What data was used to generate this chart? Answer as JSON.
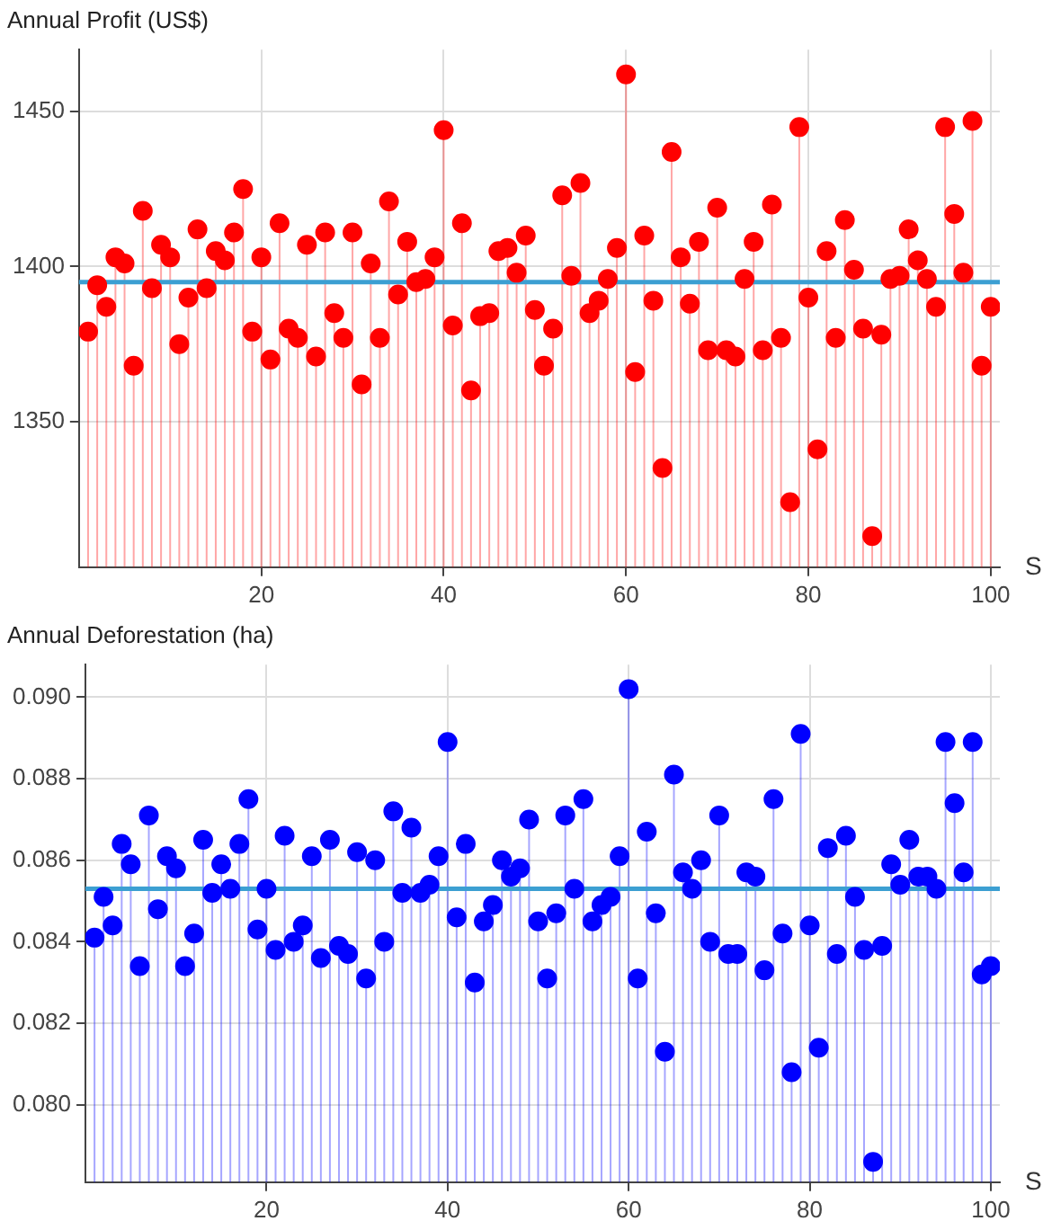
{
  "chart_data": [
    {
      "type": "lollipop",
      "ylabel": "Annual Profit (US$)",
      "xlabel": "S",
      "x": [
        1,
        2,
        3,
        4,
        5,
        6,
        7,
        8,
        9,
        10,
        11,
        12,
        13,
        14,
        15,
        16,
        17,
        18,
        19,
        20,
        21,
        22,
        23,
        24,
        25,
        26,
        27,
        28,
        29,
        30,
        31,
        32,
        33,
        34,
        35,
        36,
        37,
        38,
        39,
        40,
        41,
        42,
        43,
        44,
        45,
        46,
        47,
        48,
        49,
        50,
        51,
        52,
        53,
        54,
        55,
        56,
        57,
        58,
        59,
        60,
        61,
        62,
        63,
        64,
        65,
        66,
        67,
        68,
        69,
        70,
        71,
        72,
        73,
        74,
        75,
        76,
        77,
        78,
        79,
        80,
        81,
        82,
        83,
        84,
        85,
        86,
        87,
        88,
        89,
        90,
        91,
        92,
        93,
        94,
        95,
        96,
        97,
        98,
        99,
        100
      ],
      "values": [
        1379,
        1394,
        1387,
        1403,
        1401,
        1368,
        1418,
        1393,
        1407,
        1403,
        1375,
        1390,
        1412,
        1393,
        1405,
        1402,
        1411,
        1425,
        1379,
        1403,
        1370,
        1414,
        1380,
        1377,
        1407,
        1371,
        1411,
        1385,
        1377,
        1411,
        1362,
        1401,
        1377,
        1421,
        1391,
        1408,
        1395,
        1396,
        1403,
        1444,
        1381,
        1414,
        1360,
        1384,
        1385,
        1405,
        1406,
        1398,
        1410,
        1386,
        1368,
        1380,
        1423,
        1397,
        1427,
        1385,
        1389,
        1396,
        1406,
        1462,
        1366,
        1410,
        1389,
        1335,
        1437,
        1403,
        1388,
        1408,
        1373,
        1419,
        1373,
        1371,
        1396,
        1408,
        1373,
        1420,
        1377,
        1324,
        1445,
        1390,
        1341,
        1405,
        1377,
        1415,
        1399,
        1380,
        1313,
        1378,
        1396,
        1397,
        1412,
        1402,
        1396,
        1387,
        1445,
        1417,
        1398,
        1447,
        1368,
        1387
      ],
      "color": "#ff0000",
      "marker": "circle",
      "grid": true,
      "xlim": [
        0,
        101
      ],
      "ylim": [
        1303,
        1470
      ],
      "xticks": [
        20,
        40,
        60,
        80,
        100
      ],
      "yticks": [
        1350,
        1400,
        1450
      ],
      "ref_lines": [
        {
          "axis": "y",
          "value": 1395,
          "color": "#3c9fd2"
        }
      ]
    },
    {
      "type": "lollipop",
      "ylabel": "Annual Deforestation (ha)",
      "xlabel": "S",
      "x": [
        1,
        2,
        3,
        4,
        5,
        6,
        7,
        8,
        9,
        10,
        11,
        12,
        13,
        14,
        15,
        16,
        17,
        18,
        19,
        20,
        21,
        22,
        23,
        24,
        25,
        26,
        27,
        28,
        29,
        30,
        31,
        32,
        33,
        34,
        35,
        36,
        37,
        38,
        39,
        40,
        41,
        42,
        43,
        44,
        45,
        46,
        47,
        48,
        49,
        50,
        51,
        52,
        53,
        54,
        55,
        56,
        57,
        58,
        59,
        60,
        61,
        62,
        63,
        64,
        65,
        66,
        67,
        68,
        69,
        70,
        71,
        72,
        73,
        74,
        75,
        76,
        77,
        78,
        79,
        80,
        81,
        82,
        83,
        84,
        85,
        86,
        87,
        88,
        89,
        90,
        91,
        92,
        93,
        94,
        95,
        96,
        97,
        98,
        99,
        100
      ],
      "values": [
        0.0841,
        0.0851,
        0.0844,
        0.0864,
        0.0859,
        0.0834,
        0.0871,
        0.0848,
        0.0861,
        0.0858,
        0.0834,
        0.0842,
        0.0865,
        0.0852,
        0.0859,
        0.0853,
        0.0864,
        0.0875,
        0.0843,
        0.0853,
        0.0838,
        0.0866,
        0.084,
        0.0844,
        0.0861,
        0.0836,
        0.0865,
        0.0839,
        0.0837,
        0.0862,
        0.0831,
        0.086,
        0.084,
        0.0872,
        0.0852,
        0.0868,
        0.0852,
        0.0854,
        0.0861,
        0.0889,
        0.0846,
        0.0864,
        0.083,
        0.0845,
        0.0849,
        0.086,
        0.0856,
        0.0858,
        0.087,
        0.0845,
        0.0831,
        0.0847,
        0.0871,
        0.0853,
        0.0875,
        0.0845,
        0.0849,
        0.0851,
        0.0861,
        0.0902,
        0.0831,
        0.0867,
        0.0847,
        0.0813,
        0.0881,
        0.0857,
        0.0853,
        0.086,
        0.084,
        0.0871,
        0.0837,
        0.0837,
        0.0857,
        0.0856,
        0.0833,
        0.0875,
        0.0842,
        0.0808,
        0.0891,
        0.0844,
        0.0814,
        0.0863,
        0.0837,
        0.0866,
        0.0851,
        0.0838,
        0.0786,
        0.0839,
        0.0859,
        0.0854,
        0.0865,
        0.0856,
        0.0856,
        0.0853,
        0.0889,
        0.0874,
        0.0857,
        0.0889,
        0.0832,
        0.0834
      ],
      "color": "#0000ff",
      "marker": "circle",
      "grid": true,
      "xlim": [
        0,
        101
      ],
      "ylim": [
        0.0781,
        0.0908
      ],
      "xticks": [
        20,
        40,
        60,
        80,
        100
      ],
      "yticks": [
        {
          "value": 0.08,
          "label": "0.080"
        },
        0.082,
        0.084,
        0.086,
        0.088,
        {
          "value": 0.09,
          "label": "0.090"
        }
      ],
      "ref_lines": [
        {
          "axis": "y",
          "value": 0.0853,
          "color": "#3c9fd2"
        }
      ]
    }
  ]
}
